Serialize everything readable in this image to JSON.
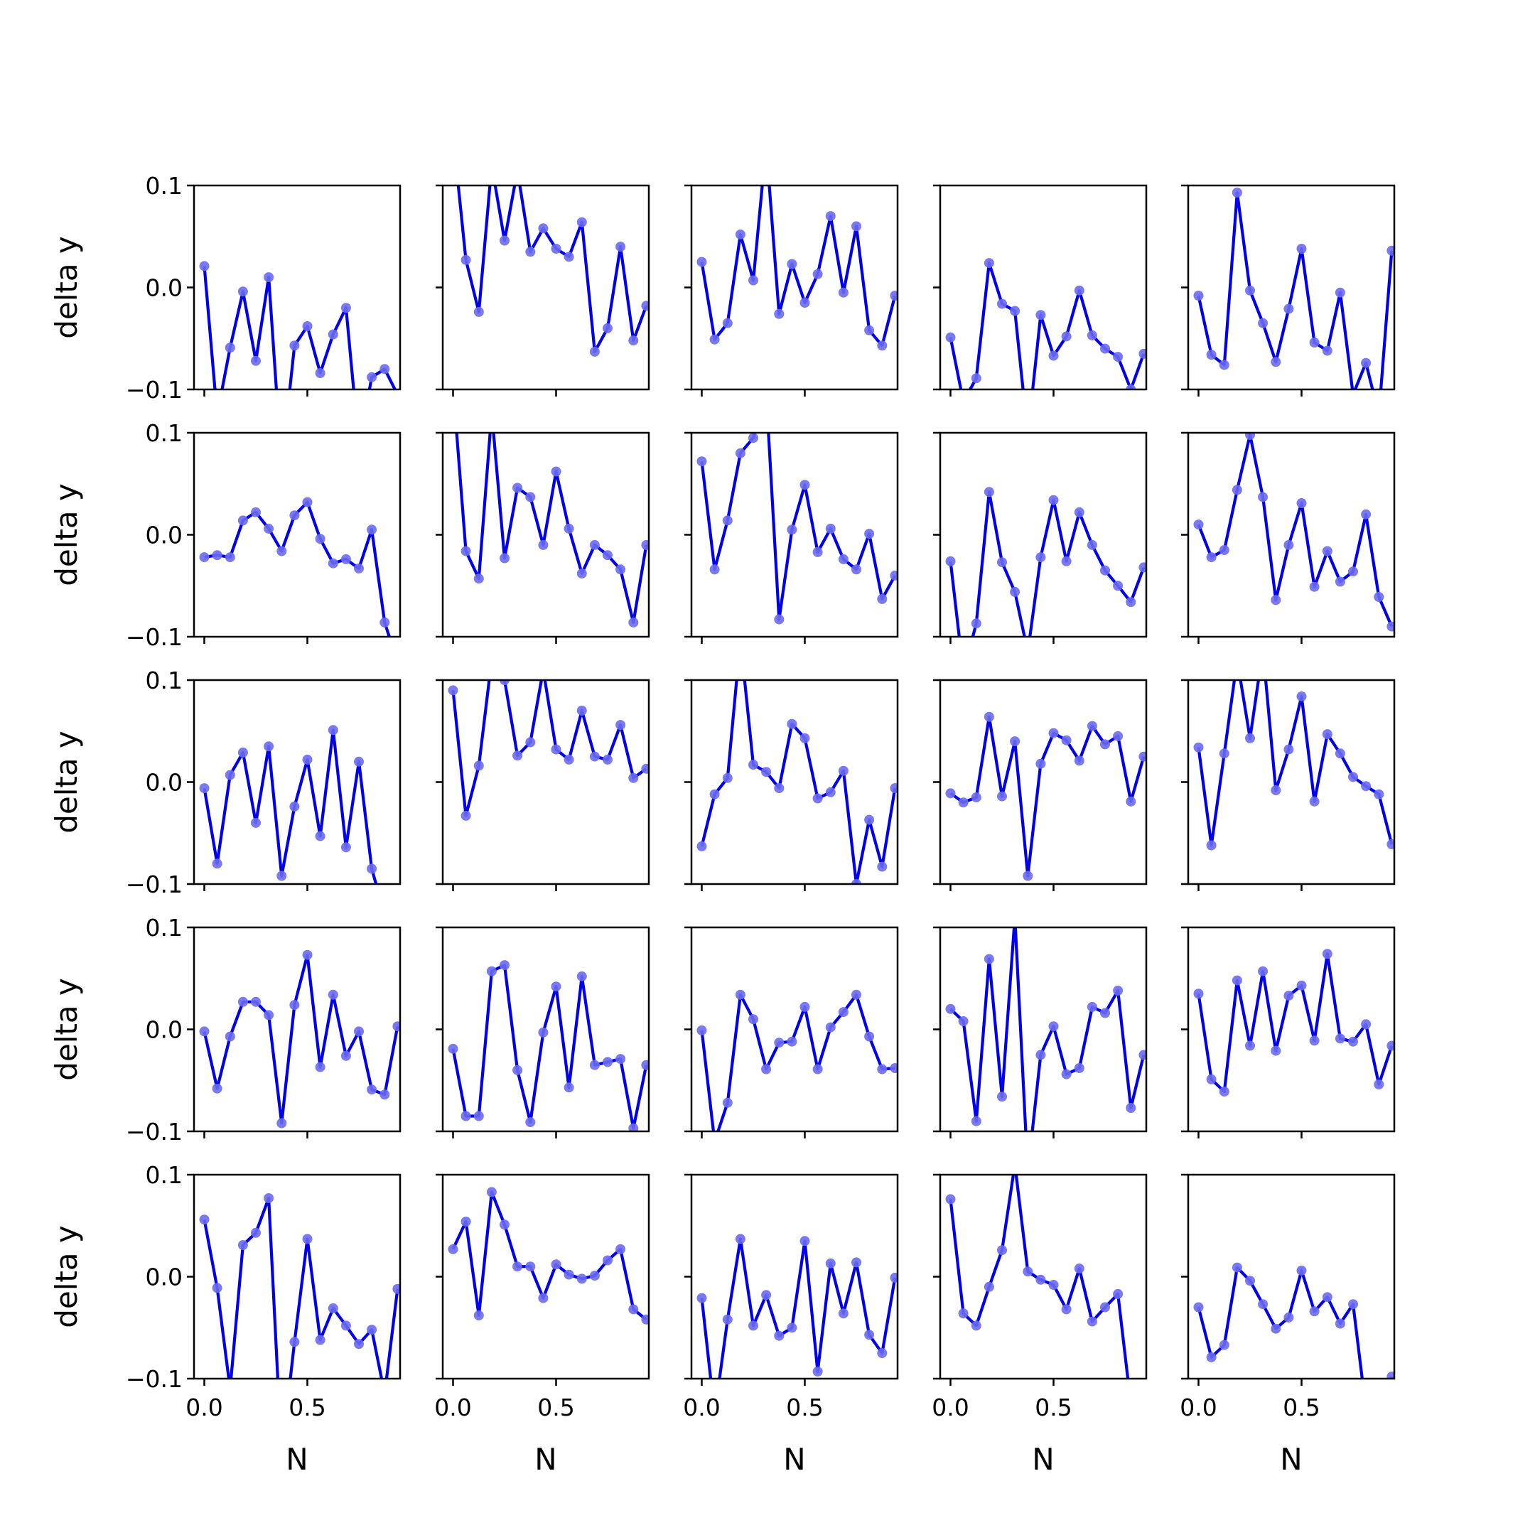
{
  "chart_data": {
    "type": "line",
    "layout": "5x5 grid of subplots, shared axes",
    "x": [
      0.0,
      0.0625,
      0.125,
      0.1875,
      0.25,
      0.3125,
      0.375,
      0.4375,
      0.5,
      0.5625,
      0.625,
      0.6875,
      0.75,
      0.8125,
      0.875,
      0.9375
    ],
    "xlim": [
      -0.05,
      0.95
    ],
    "ylim": [
      -0.1,
      0.1
    ],
    "xticks": [
      0.0,
      0.5
    ],
    "xtick_labels": [
      "0.0",
      "0.5"
    ],
    "yticks": [
      -0.1,
      0.0,
      0.1
    ],
    "ytick_labels": [
      "−0.1",
      "0.0",
      "0.1"
    ],
    "xlabel": "N",
    "ylabel": "delta y",
    "line_color": "#0000ee",
    "marker_color": "#6a6af0",
    "grid": false,
    "legend": "none",
    "panels": [
      [
        0.021,
        -0.125,
        -0.059,
        -0.004,
        -0.072,
        0.01,
        -0.175,
        -0.057,
        -0.038,
        -0.084,
        -0.046,
        -0.02,
        -0.155,
        -0.088,
        -0.08,
        -0.105
      ],
      [
        0.15,
        0.027,
        -0.024,
        0.12,
        0.046,
        0.115,
        0.035,
        0.058,
        0.038,
        0.03,
        0.064,
        -0.063,
        -0.04,
        0.04,
        -0.052,
        -0.018
      ],
      [
        0.025,
        -0.051,
        -0.035,
        0.052,
        0.007,
        0.14,
        -0.026,
        0.023,
        -0.015,
        0.013,
        0.07,
        -0.005,
        0.06,
        -0.042,
        -0.057,
        -0.008
      ],
      [
        -0.049,
        -0.112,
        -0.089,
        0.024,
        -0.016,
        -0.023,
        -0.145,
        -0.027,
        -0.067,
        -0.048,
        -0.003,
        -0.047,
        -0.06,
        -0.068,
        -0.1,
        -0.065
      ],
      [
        -0.008,
        -0.066,
        -0.076,
        0.093,
        -0.003,
        -0.035,
        -0.073,
        -0.021,
        0.038,
        -0.054,
        -0.062,
        -0.005,
        -0.105,
        -0.074,
        -0.125,
        0.036
      ],
      [
        -0.022,
        -0.02,
        -0.022,
        0.014,
        0.022,
        0.006,
        -0.016,
        0.019,
        0.032,
        -0.004,
        -0.028,
        -0.024,
        -0.033,
        0.005,
        -0.086,
        -0.125
      ],
      [
        0.145,
        -0.016,
        -0.043,
        0.12,
        -0.023,
        0.046,
        0.037,
        -0.01,
        0.062,
        0.006,
        -0.038,
        -0.01,
        -0.02,
        -0.034,
        -0.086,
        -0.01
      ],
      [
        0.072,
        -0.034,
        0.014,
        0.08,
        0.095,
        0.14,
        -0.083,
        0.005,
        0.049,
        -0.017,
        0.006,
        -0.024,
        -0.034,
        0.001,
        -0.063,
        -0.04
      ],
      [
        -0.026,
        -0.135,
        -0.087,
        0.042,
        -0.027,
        -0.056,
        -0.115,
        -0.022,
        0.034,
        -0.026,
        0.022,
        -0.01,
        -0.035,
        -0.05,
        -0.066,
        -0.032
      ],
      [
        0.01,
        -0.022,
        -0.015,
        0.044,
        0.098,
        0.037,
        -0.064,
        -0.01,
        0.031,
        -0.051,
        -0.016,
        -0.046,
        -0.036,
        0.02,
        -0.061,
        -0.09
      ],
      [
        -0.006,
        -0.08,
        0.007,
        0.029,
        -0.04,
        0.035,
        -0.092,
        -0.024,
        0.022,
        -0.053,
        0.051,
        -0.064,
        0.02,
        -0.085,
        -0.13,
        -0.13
      ],
      [
        0.09,
        -0.033,
        0.016,
        0.12,
        0.1,
        0.026,
        0.039,
        0.11,
        0.032,
        0.022,
        0.07,
        0.025,
        0.022,
        0.056,
        0.004,
        0.013
      ],
      [
        -0.063,
        -0.012,
        0.004,
        0.14,
        0.017,
        0.01,
        -0.006,
        0.057,
        0.043,
        -0.016,
        -0.01,
        0.011,
        -0.1,
        -0.037,
        -0.083,
        -0.006
      ],
      [
        -0.011,
        -0.02,
        -0.015,
        0.064,
        -0.014,
        0.04,
        -0.092,
        0.018,
        0.048,
        0.041,
        0.021,
        0.055,
        0.037,
        0.045,
        -0.019,
        0.025
      ],
      [
        0.034,
        -0.062,
        0.028,
        0.12,
        0.043,
        0.13,
        -0.008,
        0.032,
        0.084,
        -0.019,
        0.047,
        0.028,
        0.005,
        -0.004,
        -0.012,
        -0.061
      ],
      [
        -0.002,
        -0.058,
        -0.007,
        0.027,
        0.027,
        0.014,
        -0.092,
        0.024,
        0.073,
        -0.037,
        0.034,
        -0.026,
        -0.002,
        -0.059,
        -0.064,
        0.003
      ],
      [
        -0.019,
        -0.085,
        -0.085,
        0.057,
        0.063,
        -0.04,
        -0.091,
        -0.003,
        0.042,
        -0.057,
        0.052,
        -0.035,
        -0.032,
        -0.029,
        -0.097,
        -0.035
      ],
      [
        -0.001,
        -0.11,
        -0.072,
        0.034,
        0.01,
        -0.039,
        -0.013,
        -0.012,
        0.022,
        -0.039,
        0.002,
        0.017,
        0.034,
        -0.007,
        -0.039,
        -0.038
      ],
      [
        0.02,
        0.008,
        -0.09,
        0.069,
        -0.066,
        0.11,
        -0.14,
        -0.025,
        0.003,
        -0.044,
        -0.038,
        0.022,
        0.016,
        0.038,
        -0.077,
        -0.025
      ],
      [
        0.035,
        -0.049,
        -0.061,
        0.048,
        -0.016,
        0.057,
        -0.021,
        0.033,
        0.043,
        -0.011,
        0.074,
        -0.009,
        -0.012,
        0.005,
        -0.054,
        -0.016
      ],
      [
        0.056,
        -0.011,
        -0.11,
        0.031,
        0.043,
        0.077,
        -0.175,
        -0.064,
        0.037,
        -0.062,
        -0.031,
        -0.048,
        -0.066,
        -0.052,
        -0.115,
        -0.012
      ],
      [
        0.027,
        0.054,
        -0.038,
        0.083,
        0.051,
        0.01,
        0.01,
        -0.021,
        0.012,
        0.002,
        -0.002,
        0.001,
        0.016,
        0.027,
        -0.032,
        -0.042
      ],
      [
        -0.021,
        -0.135,
        -0.042,
        0.037,
        -0.048,
        -0.018,
        -0.058,
        -0.05,
        0.035,
        -0.093,
        0.013,
        -0.036,
        0.014,
        -0.057,
        -0.075,
        -0.001
      ],
      [
        0.076,
        -0.036,
        -0.048,
        -0.01,
        0.026,
        0.11,
        0.005,
        -0.003,
        -0.008,
        -0.032,
        0.008,
        -0.044,
        -0.03,
        -0.017,
        -0.125,
        -0.145
      ],
      [
        -0.03,
        -0.079,
        -0.067,
        0.009,
        -0.004,
        -0.027,
        -0.051,
        -0.04,
        0.006,
        -0.034,
        -0.02,
        -0.046,
        -0.027,
        -0.13,
        -0.145,
        -0.098
      ]
    ]
  }
}
